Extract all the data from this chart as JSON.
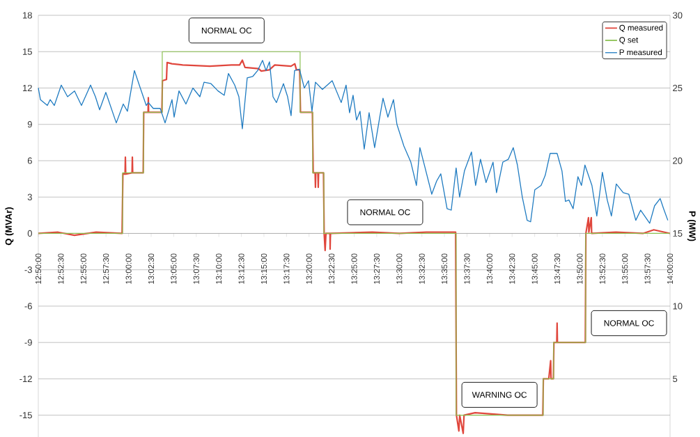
{
  "chart_data": {
    "type": "line",
    "ylabel": "Q (MVAr)",
    "y2label": "P (MW)",
    "xlim": [
      12.8333,
      14.0
    ],
    "xticks": [
      {
        "value": 12.8333,
        "label": "12:50:00"
      },
      {
        "value": 12.875,
        "label": "12:52:30"
      },
      {
        "value": 12.9167,
        "label": "12:55:00"
      },
      {
        "value": 12.9583,
        "label": "12:57:30"
      },
      {
        "value": 13.0,
        "label": "13:00:00"
      },
      {
        "value": 13.0417,
        "label": "13:02:30"
      },
      {
        "value": 13.0833,
        "label": "13:05:00"
      },
      {
        "value": 13.125,
        "label": "13:07:30"
      },
      {
        "value": 13.1667,
        "label": "13:10:00"
      },
      {
        "value": 13.2083,
        "label": "13:12:30"
      },
      {
        "value": 13.25,
        "label": "13:15:00"
      },
      {
        "value": 13.2917,
        "label": "13:17:30"
      },
      {
        "value": 13.3333,
        "label": "13:20:00"
      },
      {
        "value": 13.375,
        "label": "13:22:30"
      },
      {
        "value": 13.4167,
        "label": "13:25:00"
      },
      {
        "value": 13.4583,
        "label": "13:27:30"
      },
      {
        "value": 13.5,
        "label": "13:30:00"
      },
      {
        "value": 13.5417,
        "label": "13:32:30"
      },
      {
        "value": 13.5833,
        "label": "13:35:00"
      },
      {
        "value": 13.625,
        "label": "13:37:30"
      },
      {
        "value": 13.6667,
        "label": "13:40:00"
      },
      {
        "value": 13.7083,
        "label": "13:42:30"
      },
      {
        "value": 13.75,
        "label": "13:45:00"
      },
      {
        "value": 13.7917,
        "label": "13:47:30"
      },
      {
        "value": 13.8333,
        "label": "13:50:00"
      },
      {
        "value": 13.875,
        "label": "13:52:30"
      },
      {
        "value": 13.9167,
        "label": "13:55:00"
      },
      {
        "value": 13.9583,
        "label": "13:57:30"
      },
      {
        "value": 14.0,
        "label": "14:00:00"
      }
    ],
    "ylim": [
      -16.8,
      18
    ],
    "yticks": [
      -15,
      -12,
      -9,
      -6,
      -3,
      0,
      3,
      6,
      9,
      12,
      15,
      18
    ],
    "y2lim": [
      1,
      30
    ],
    "y2ticks": [
      5,
      10,
      15,
      20,
      25,
      30
    ],
    "grid": "y",
    "legend": "top right",
    "series": [
      {
        "name": "Q measured",
        "color": "#e0463c",
        "x": [
          12.8333,
          12.87,
          12.9,
          12.94,
          12.988,
          12.9895,
          12.9935,
          12.9941,
          12.9947,
          13.0064,
          13.007,
          13.0076,
          13.027,
          13.028,
          13.036,
          13.0365,
          13.037,
          13.0615,
          13.0625,
          13.07,
          13.0712,
          13.08,
          13.1,
          13.15,
          13.19,
          13.205,
          13.2101,
          13.215,
          13.24,
          13.245,
          13.26,
          13.27,
          13.3,
          13.307,
          13.31,
          13.316,
          13.3175,
          13.3395,
          13.341,
          13.3445,
          13.3451,
          13.3457,
          13.3497,
          13.3503,
          13.3509,
          13.36,
          13.3612,
          13.363,
          13.3645,
          13.372,
          13.3722,
          13.3728,
          13.45,
          13.5,
          13.55,
          13.604,
          13.6055,
          13.61,
          13.6115,
          13.618,
          13.6195,
          13.64,
          13.7,
          13.765,
          13.766,
          13.776,
          13.7795,
          13.7802,
          13.7845,
          13.7855,
          13.7908,
          13.7914,
          13.792,
          13.8435,
          13.8445,
          13.8493,
          13.85,
          13.8545,
          13.8552,
          13.9,
          13.95,
          13.97,
          14.0
        ],
        "values": [
          0,
          0.1,
          -0.15,
          0.1,
          0,
          4.9,
          4.9,
          6.3,
          4.9,
          5.0,
          6.3,
          5.0,
          5.0,
          10.0,
          10.0,
          11.2,
          10.0,
          10.0,
          12.6,
          12.7,
          14.1,
          14.0,
          13.9,
          13.8,
          13.9,
          13.9,
          14.3,
          13.7,
          13.6,
          13.4,
          13.5,
          13.9,
          13.8,
          14.0,
          13.5,
          13.5,
          10.0,
          10.0,
          5.0,
          5.0,
          3.8,
          5.0,
          5.0,
          3.8,
          5.0,
          5.0,
          0,
          -1.4,
          0,
          0,
          -1.3,
          0,
          0.1,
          0,
          0.1,
          0.1,
          -15,
          -16.3,
          -15,
          -16.5,
          -15,
          -14.8,
          -15,
          -15,
          -12,
          -12,
          -10.5,
          -12,
          -12,
          -9,
          -9,
          -7.4,
          -9,
          -9,
          0,
          1.3,
          0.1,
          1.3,
          0,
          0.1,
          0,
          0.3,
          0
        ]
      },
      {
        "name": "Q set",
        "type": "step",
        "color": "#8cc152",
        "x": [
          12.8333,
          12.9889,
          13.0275,
          13.0622,
          13.3168,
          13.34,
          13.3606,
          13.6049,
          13.7657,
          13.7849,
          13.8441,
          14.0
        ],
        "values": [
          0,
          5,
          10,
          15,
          10,
          5,
          0,
          -15,
          -12,
          -9,
          0,
          0
        ]
      },
      {
        "name": "P measured",
        "axis": "y2",
        "color": "#1f7bc1",
        "x": [
          12.8333,
          12.8372,
          12.85,
          12.8552,
          12.8629,
          12.8757,
          12.8873,
          12.9002,
          12.913,
          12.9298,
          12.9388,
          12.9465,
          12.958,
          12.9773,
          12.9902,
          12.9979,
          13.0108,
          13.0198,
          13.0326,
          13.0365,
          13.0455,
          13.0584,
          13.0674,
          13.0802,
          13.0841,
          13.0931,
          13.1059,
          13.1188,
          13.1317,
          13.1394,
          13.1522,
          13.1651,
          13.1767,
          13.1844,
          13.196,
          13.2037,
          13.2101,
          13.2191,
          13.2294,
          13.2384,
          13.2474,
          13.2538,
          13.2603,
          13.2667,
          13.2731,
          13.286,
          13.2937,
          13.3001,
          13.3066,
          13.3156,
          13.3246,
          13.3323,
          13.3387,
          13.3451,
          13.358,
          13.376,
          13.3927,
          13.4017,
          13.4081,
          13.4146,
          13.421,
          13.4274,
          13.4352,
          13.4442,
          13.4544,
          13.4634,
          13.4699,
          13.4789,
          13.4892,
          13.4956,
          13.5085,
          13.5213,
          13.5316,
          13.538,
          13.547,
          13.5599,
          13.5689,
          13.5766,
          13.5882,
          13.5959,
          13.6049,
          13.6113,
          13.6203,
          13.6332,
          13.6409,
          13.6499,
          13.6602,
          13.6731,
          13.6795,
          13.6911,
          13.7014,
          13.7104,
          13.7181,
          13.7271,
          13.7361,
          13.7425,
          13.7502,
          13.7618,
          13.7695,
          13.7785,
          13.7914,
          13.8004,
          13.8068,
          13.8132,
          13.821,
          13.8299,
          13.8364,
          13.8428,
          13.8557,
          13.8647,
          13.875,
          13.884,
          13.8917,
          13.9007,
          13.9135,
          13.9238,
          13.9367,
          13.9457,
          13.9624,
          13.9714,
          13.9817,
          13.9881,
          13.9959
        ],
        "values": [
          25.0,
          24.2,
          23.8,
          24.2,
          23.8,
          25.2,
          24.4,
          24.8,
          23.8,
          25.2,
          24.4,
          23.5,
          24.7,
          22.6,
          23.9,
          23.4,
          26.2,
          25.2,
          23.8,
          24.0,
          23.6,
          23.6,
          22.6,
          24.2,
          23.0,
          24.8,
          23.9,
          25.0,
          24.4,
          25.4,
          25.3,
          24.8,
          24.5,
          26.0,
          25.2,
          24.4,
          22.2,
          25.7,
          25.8,
          26.2,
          26.9,
          26.2,
          26.8,
          24.4,
          24.0,
          25.3,
          24.4,
          23.1,
          26.2,
          26.3,
          25.0,
          25.5,
          23.4,
          25.4,
          24.9,
          25.5,
          24.0,
          25.2,
          23.3,
          24.5,
          22.8,
          23.4,
          20.8,
          23.3,
          20.9,
          22.9,
          24.3,
          23.0,
          24.2,
          22.5,
          21.0,
          19.9,
          18.3,
          20.9,
          19.6,
          17.7,
          18.6,
          19.1,
          16.7,
          16.6,
          19.5,
          17.5,
          19.3,
          20.6,
          18.3,
          20.1,
          18.5,
          19.9,
          17.8,
          19.9,
          20.1,
          20.9,
          19.7,
          17.5,
          15.9,
          15.8,
          18.0,
          18.3,
          19.0,
          20.5,
          20.5,
          19.3,
          17.2,
          17.3,
          16.7,
          18.9,
          18.3,
          19.7,
          18.3,
          16.2,
          19.2,
          17.3,
          16.2,
          18.4,
          17.8,
          17.7,
          15.9,
          16.6,
          15.7,
          16.9,
          17.4,
          16.7,
          15.9
        ]
      }
    ],
    "annotations": [
      "NORMAL OC",
      "NORMAL OC",
      "NORMAL OC",
      "WARNING OC"
    ]
  }
}
